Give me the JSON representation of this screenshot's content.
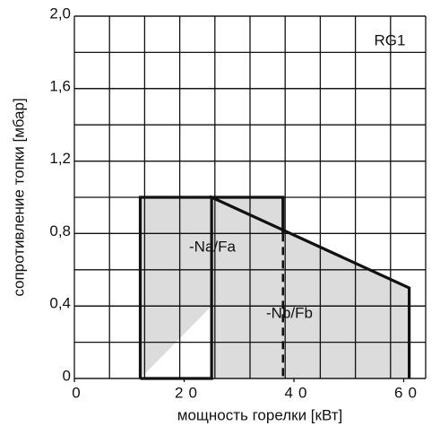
{
  "chart_data": {
    "type": "line",
    "title": "RG1",
    "x_label": "мощность горелки  [кВт]",
    "y_label": "сопротивление топки [мбар]",
    "xlim": [
      0,
      64
    ],
    "ylim": [
      0,
      2
    ],
    "xticks": [
      0,
      20,
      40,
      60
    ],
    "yticks": [
      0,
      {
        "value": 0.4,
        "label": "0,4"
      },
      {
        "value": 0.8,
        "label": "0,8"
      },
      {
        "value": 1.2,
        "label": "1,2"
      },
      {
        "value": 1.6,
        "label": "1,6"
      },
      {
        "value": 2,
        "label": "2,0"
      }
    ],
    "grid": true,
    "fill_color": "#dcdcdc",
    "line_color": "#111111",
    "series": [
      {
        "x": [
          12,
          12,
          38,
          38
        ],
        "values": [
          0,
          1,
          1,
          0.8
        ]
      },
      {
        "x": [
          38,
          38
        ],
        "values": [
          0.8,
          0
        ],
        "dash": true
      },
      {
        "x": [
          12,
          25,
          25,
          61,
          61
        ],
        "values": [
          0,
          0,
          1,
          0.5,
          0
        ]
      }
    ],
    "annotations": [
      "-Na/Fa",
      "-Nb/Fb"
    ]
  }
}
